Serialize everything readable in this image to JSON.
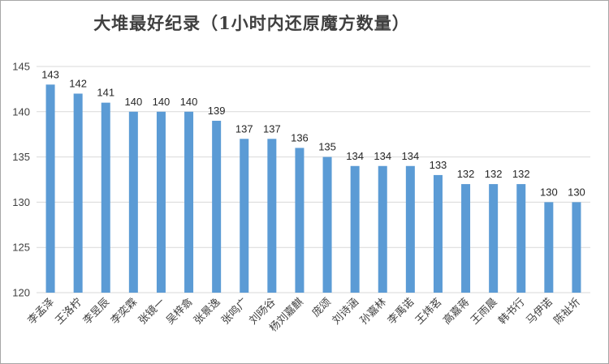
{
  "chart_data": {
    "type": "bar",
    "title": "大堆最好纪录（1小时内还原魔方数量）",
    "categories": [
      "李孟泽",
      "王洛柠",
      "李昱辰",
      "李奕霖",
      "张镜一",
      "吴梓翕",
      "张景逸",
      "张鸣广",
      "刘旸谷",
      "杨刘嘉麒",
      "庞颂",
      "刘诗涵",
      "孙嘉林",
      "李禹诺",
      "王炜茗",
      "高嘉蒋",
      "王雨晨",
      "韩书行",
      "马伊诺",
      "陈祉圻"
    ],
    "values": [
      143,
      142,
      141,
      140,
      140,
      140,
      139,
      137,
      137,
      136,
      135,
      134,
      134,
      134,
      133,
      132,
      132,
      132,
      130,
      130
    ],
    "ylim": [
      120,
      145
    ],
    "yticks": [
      120,
      125,
      130,
      135,
      140,
      145
    ],
    "xlabel": "",
    "ylabel": "",
    "grid": true,
    "legend": "none",
    "bar_color": "#5b9bd5",
    "grid_color": "#d9d9d9"
  }
}
